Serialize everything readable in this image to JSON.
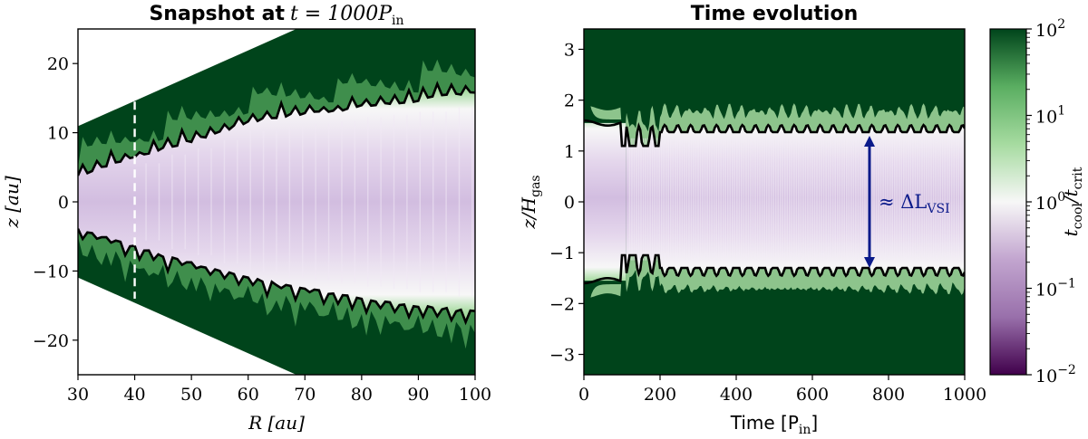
{
  "chart_data": [
    {
      "type": "heatmap",
      "panel": "left",
      "title": "Snapshot at",
      "title_math": "t = 1000P",
      "title_math_sub": "in",
      "xlabel": "R [au]",
      "ylabel": "z [au]",
      "xlim": [
        30,
        100
      ],
      "ylim": [
        -25,
        25
      ],
      "xticks": [
        30,
        40,
        50,
        60,
        70,
        80,
        90,
        100
      ],
      "yticks": [
        -20,
        -10,
        0,
        10,
        20
      ],
      "ytick_labels": [
        "−20",
        "−10",
        "0",
        "10",
        "20"
      ],
      "domain_edge_slope_z_per_R": 0.365,
      "dashed_line": {
        "R": 40,
        "z_range": [
          -14,
          14.5
        ]
      },
      "contour_upper": [
        [
          30,
          3.6
        ],
        [
          35,
          5.1
        ],
        [
          40,
          6.2
        ],
        [
          45,
          7.6
        ],
        [
          50,
          8.6
        ],
        [
          55,
          9.9
        ],
        [
          60,
          11.4
        ],
        [
          65,
          12.1
        ],
        [
          70,
          12.6
        ],
        [
          75,
          13.0
        ],
        [
          80,
          13.6
        ],
        [
          85,
          14.0
        ],
        [
          90,
          14.5
        ],
        [
          95,
          15.2
        ],
        [
          100,
          15.8
        ]
      ],
      "contour_lower": [
        [
          30,
          -3.6
        ],
        [
          35,
          -5.0
        ],
        [
          40,
          -6.3
        ],
        [
          45,
          -7.7
        ],
        [
          50,
          -8.7
        ],
        [
          55,
          -9.6
        ],
        [
          60,
          -10.8
        ],
        [
          65,
          -11.7
        ],
        [
          70,
          -12.3
        ],
        [
          75,
          -13.2
        ],
        [
          80,
          -13.8
        ],
        [
          85,
          -14.4
        ],
        [
          90,
          -14.9
        ],
        [
          95,
          -15.3
        ],
        [
          100,
          -15.8
        ]
      ]
    },
    {
      "type": "heatmap",
      "panel": "right",
      "title": "Time evolution",
      "xlabel": "Time [P",
      "xlabel_sub": "in",
      "xlabel_end": "]",
      "ylabel": "z/H",
      "ylabel_sub": "gas",
      "xlim": [
        0,
        1000
      ],
      "ylim": [
        -3.4,
        3.4
      ],
      "xticks": [
        0,
        200,
        400,
        600,
        800,
        1000
      ],
      "yticks": [
        -3,
        -2,
        -1,
        0,
        1,
        2,
        3
      ],
      "ytick_labels": [
        "−3",
        "−2",
        "−1",
        "0",
        "1",
        "2",
        "3"
      ],
      "contour_upper_level": 1.55,
      "contour_lower_level": -1.4,
      "annotation": {
        "text": "≈ ΔL",
        "sub": "VSI",
        "arrow_time": 750,
        "arrow_z": [
          -1.3,
          1.3
        ]
      }
    }
  ],
  "colorbar": {
    "label": "t",
    "label_sub1": "cool",
    "label_mid": "/t",
    "label_sub2": "crit",
    "scale": "log",
    "range": [
      0.01,
      100
    ],
    "ticks": [
      {
        "base": "10",
        "exp": "2",
        "value": 100
      },
      {
        "base": "10",
        "exp": "1",
        "value": 10
      },
      {
        "base": "10",
        "exp": "0",
        "value": 1
      },
      {
        "base": "10",
        "exp": "−1",
        "value": 0.1
      },
      {
        "base": "10",
        "exp": "−2",
        "value": 0.01
      }
    ],
    "colors": [
      "#40004b",
      "#9970ab",
      "#c2a5cf",
      "#f7f7f7",
      "#a6dba0",
      "#5aae61",
      "#00441b"
    ]
  }
}
